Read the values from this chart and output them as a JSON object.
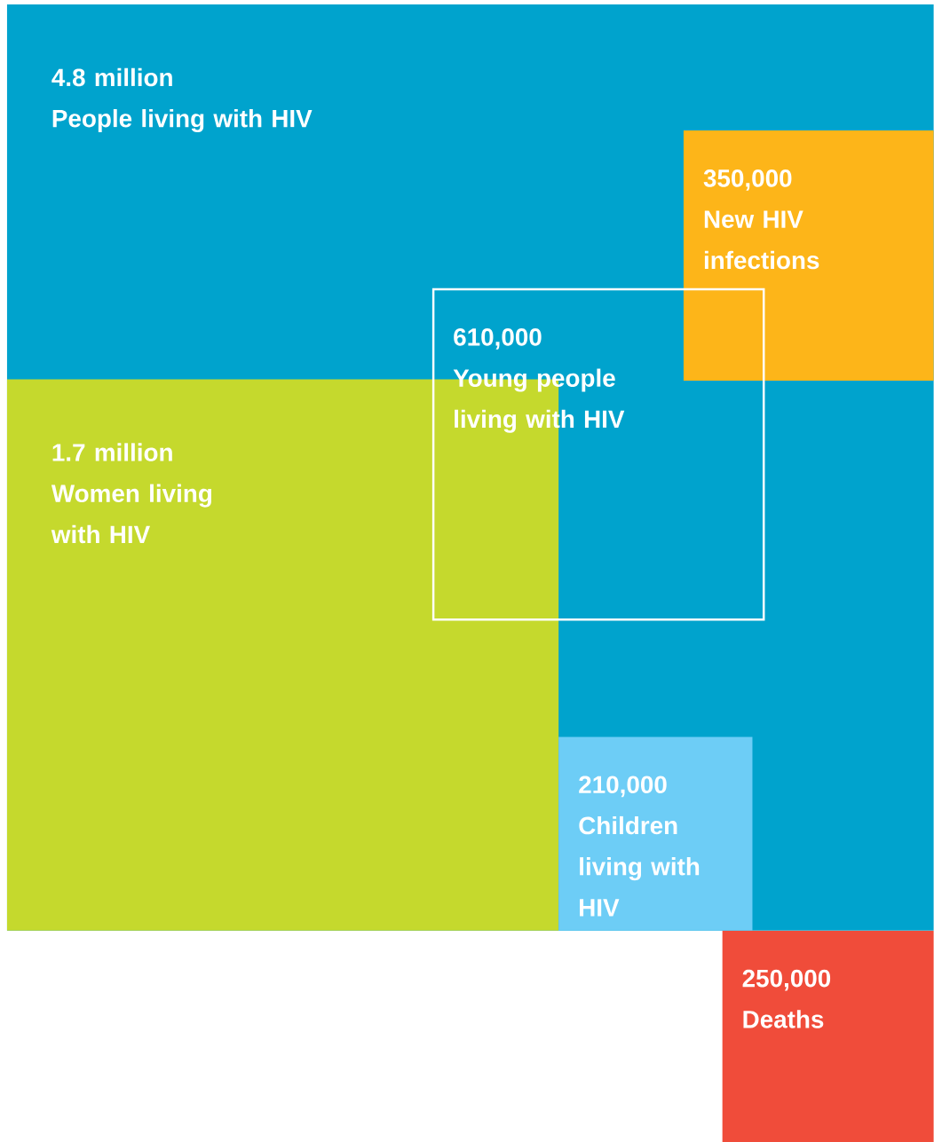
{
  "chart_data": {
    "type": "other",
    "categories": [
      "People living with HIV",
      "New HIV infections",
      "Young people living with HIV",
      "Women living with HIV",
      "Children living with HIV",
      "Deaths"
    ],
    "values": [
      4800000,
      350000,
      610000,
      1700000,
      210000,
      250000
    ],
    "value_labels": [
      "4.8 million",
      "350,000",
      "610,000",
      "1.7 million",
      "210,000",
      "250,000"
    ],
    "colors": [
      "#00a3cd",
      "#fdb519",
      "#ffffff",
      "#c5d92d",
      "#6dcdf6",
      "#f04c3a"
    ]
  }
}
